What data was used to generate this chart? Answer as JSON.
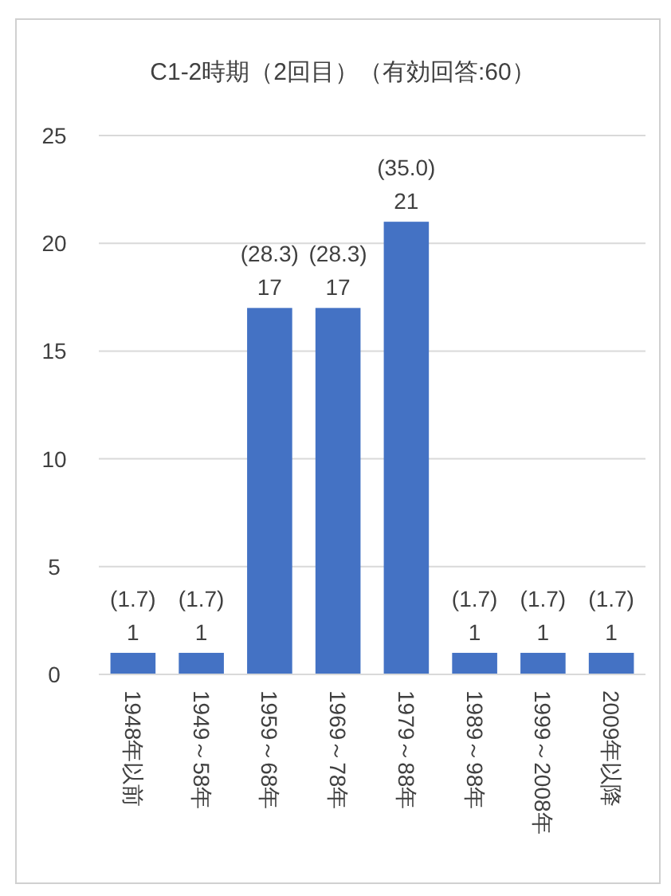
{
  "chart_data": {
    "type": "bar",
    "title": "C1-2時期（2回目）（有効回答:60）",
    "categories": [
      "1948年以前",
      "1949～58年",
      "1959～68年",
      "1969～78年",
      "1979～88年",
      "1989～98年",
      "1999～2008年",
      "2009年以降"
    ],
    "values": [
      1,
      1,
      17,
      17,
      21,
      1,
      1,
      1
    ],
    "value_labels": [
      "(1.7)\n1",
      "(1.7)\n1",
      "(28.3)\n17",
      "(28.3)\n17",
      "(35.0)\n21",
      "(1.7)\n1",
      "(1.7)\n1",
      "(1.7)\n1"
    ],
    "color": "#4472c4",
    "ylim": [
      0,
      25
    ],
    "yticks": [
      0,
      5,
      10,
      15,
      20,
      25
    ],
    "grid": "y"
  }
}
